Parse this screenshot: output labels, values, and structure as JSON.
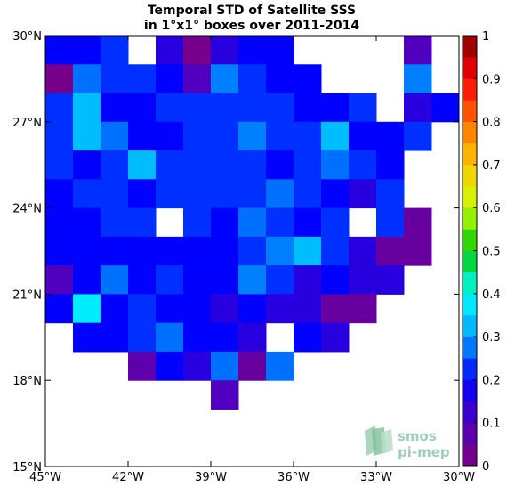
{
  "chart_data": {
    "type": "heatmap",
    "title": "Temporal STD of Satellite SSS",
    "subtitle": "in 1°x1° boxes over 2011-2014",
    "xlabel": "",
    "ylabel": "",
    "xlim": [
      -45,
      -30
    ],
    "ylim": [
      15,
      30
    ],
    "x_ticks": [
      "45°W",
      "42°W",
      "39°W",
      "36°W",
      "33°W",
      "30°W"
    ],
    "y_ticks": [
      "15°N",
      "18°N",
      "21°N",
      "24°N",
      "27°N",
      "30°N"
    ],
    "colorbar": {
      "range": [
        0,
        1
      ],
      "ticks": [
        "0",
        "0.1",
        "0.2",
        "0.3",
        "0.4",
        "0.5",
        "0.6",
        "0.7",
        "0.8",
        "0.9",
        "1"
      ],
      "n_levels": 20,
      "colormap": "jet-with-purple-low"
    },
    "cell_size_deg": 1,
    "rows": [
      {
        "lat_center": 29.5,
        "values": [
          0.2,
          0.2,
          0.23,
          null,
          0.15,
          0.02,
          0.15,
          0.2,
          0.2,
          null,
          null,
          null,
          null,
          0.1,
          null
        ]
      },
      {
        "lat_center": 28.5,
        "values": [
          0.02,
          0.27,
          0.23,
          0.23,
          0.2,
          0.1,
          0.28,
          0.23,
          0.2,
          0.2,
          null,
          null,
          null,
          0.28,
          null
        ]
      },
      {
        "lat_center": 27.5,
        "values": [
          0.23,
          0.33,
          0.2,
          0.2,
          0.23,
          0.23,
          0.23,
          0.23,
          0.23,
          0.2,
          0.2,
          0.23,
          null,
          0.15,
          0.2
        ]
      },
      {
        "lat_center": 26.5,
        "values": [
          0.23,
          0.33,
          0.27,
          0.2,
          0.2,
          0.23,
          0.23,
          0.28,
          0.23,
          0.23,
          0.33,
          0.2,
          0.2,
          0.23,
          null
        ]
      },
      {
        "lat_center": 25.5,
        "values": [
          0.23,
          0.2,
          0.23,
          0.33,
          0.23,
          0.23,
          0.23,
          0.23,
          0.2,
          0.23,
          0.27,
          0.23,
          0.2,
          null,
          null
        ]
      },
      {
        "lat_center": 24.5,
        "values": [
          0.2,
          0.23,
          0.23,
          0.2,
          0.23,
          0.23,
          0.23,
          0.23,
          0.27,
          0.23,
          0.2,
          0.15,
          0.23,
          null,
          null
        ]
      },
      {
        "lat_center": 23.5,
        "values": [
          0.2,
          0.2,
          0.23,
          0.23,
          null,
          0.23,
          0.2,
          0.27,
          0.23,
          0.2,
          0.23,
          null,
          0.23,
          0.05,
          null
        ]
      },
      {
        "lat_center": 22.5,
        "values": [
          0.2,
          0.2,
          0.2,
          0.2,
          0.2,
          0.2,
          0.2,
          0.23,
          0.28,
          0.33,
          0.23,
          0.15,
          0.05,
          0.05,
          null
        ]
      },
      {
        "lat_center": 21.5,
        "values": [
          0.1,
          0.2,
          0.27,
          0.2,
          0.23,
          0.2,
          0.2,
          0.28,
          0.23,
          0.15,
          0.2,
          0.15,
          0.15,
          null,
          null
        ]
      },
      {
        "lat_center": 20.5,
        "values": [
          0.2,
          0.38,
          0.2,
          0.23,
          0.2,
          0.2,
          0.15,
          0.2,
          0.15,
          0.15,
          0.05,
          0.05,
          null,
          null,
          null
        ]
      },
      {
        "lat_center": 19.5,
        "values": [
          null,
          0.2,
          0.2,
          0.23,
          0.27,
          0.2,
          0.2,
          0.15,
          null,
          0.2,
          0.15,
          null,
          null,
          null,
          null
        ]
      },
      {
        "lat_center": 18.5,
        "values": [
          null,
          null,
          null,
          0.07,
          0.2,
          0.15,
          0.27,
          0.05,
          0.27,
          null,
          null,
          null,
          null,
          null,
          null
        ]
      },
      {
        "lat_center": 17.5,
        "values": [
          null,
          null,
          null,
          null,
          null,
          null,
          0.1,
          null,
          null,
          null,
          null,
          null,
          null,
          null,
          null
        ]
      }
    ]
  },
  "logo": {
    "line1": "smos",
    "line2": "pi-mep",
    "color": "#9fcfb6"
  }
}
